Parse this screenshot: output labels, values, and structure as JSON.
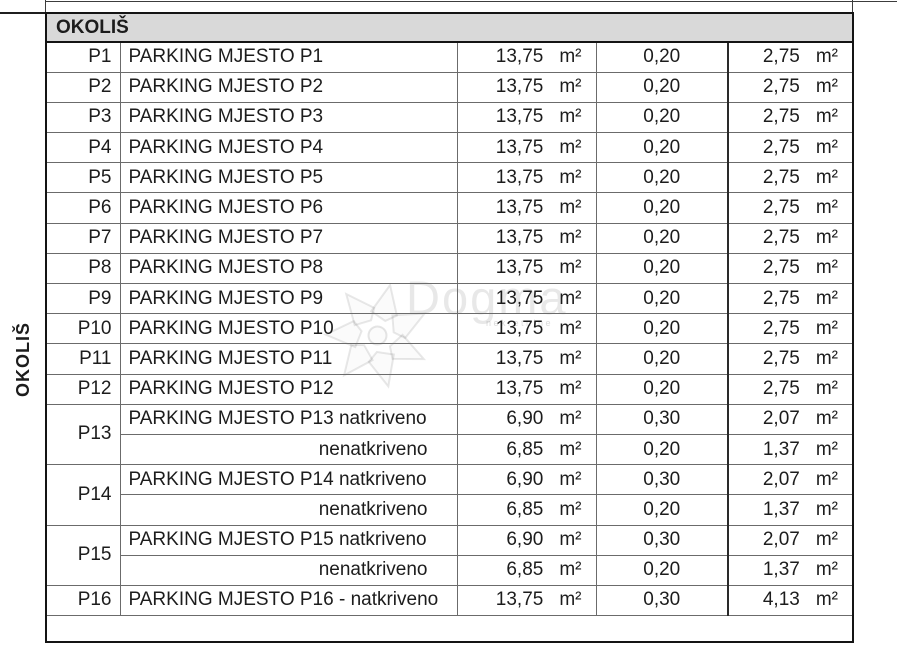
{
  "document": {
    "section_header": "OKOLIŠ",
    "side_label": "OKOLIŠ",
    "unit": "m²"
  },
  "watermark": {
    "brand": "Dogma",
    "subtitle": "nekretnine"
  },
  "table": {
    "rows": [
      {
        "code": "P1",
        "label": "PARKING MJESTO P1",
        "area": "13,75",
        "coef": "0,20",
        "result": "2,75"
      },
      {
        "code": "P2",
        "label": "PARKING MJESTO P2",
        "area": "13,75",
        "coef": "0,20",
        "result": "2,75"
      },
      {
        "code": "P3",
        "label": "PARKING MJESTO P3",
        "area": "13,75",
        "coef": "0,20",
        "result": "2,75"
      },
      {
        "code": "P4",
        "label": "PARKING MJESTO P4",
        "area": "13,75",
        "coef": "0,20",
        "result": "2,75"
      },
      {
        "code": "P5",
        "label": "PARKING MJESTO P5",
        "area": "13,75",
        "coef": "0,20",
        "result": "2,75"
      },
      {
        "code": "P6",
        "label": "PARKING MJESTO P6",
        "area": "13,75",
        "coef": "0,20",
        "result": "2,75"
      },
      {
        "code": "P7",
        "label": "PARKING MJESTO P7",
        "area": "13,75",
        "coef": "0,20",
        "result": "2,75"
      },
      {
        "code": "P8",
        "label": "PARKING MJESTO P8",
        "area": "13,75",
        "coef": "0,20",
        "result": "2,75"
      },
      {
        "code": "P9",
        "label": "PARKING MJESTO P9",
        "area": "13,75",
        "coef": "0,20",
        "result": "2,75"
      },
      {
        "code": "P10",
        "label": "PARKING MJESTO P10",
        "area": "13,75",
        "coef": "0,20",
        "result": "2,75"
      },
      {
        "code": "P11",
        "label": "PARKING MJESTO P11",
        "area": "13,75",
        "coef": "0,20",
        "result": "2,75"
      },
      {
        "code": "P12",
        "label": "PARKING MJESTO P12",
        "area": "13,75",
        "coef": "0,20",
        "result": "2,75"
      },
      {
        "code": "P13",
        "rowspan": 2,
        "label": "PARKING MJESTO P13 natkriveno",
        "area": "6,90",
        "coef": "0,30",
        "result": "2,07"
      },
      {
        "sub": true,
        "label": "nenatkriveno",
        "area": "6,85",
        "coef": "0,20",
        "result": "1,37"
      },
      {
        "code": "P14",
        "rowspan": 2,
        "label": "PARKING MJESTO P14 natkriveno",
        "area": "6,90",
        "coef": "0,30",
        "result": "2,07"
      },
      {
        "sub": true,
        "label": "nenatkriveno",
        "area": "6,85",
        "coef": "0,20",
        "result": "1,37"
      },
      {
        "code": "P15",
        "rowspan": 2,
        "label": "PARKING MJESTO P15 natkriveno",
        "area": "6,90",
        "coef": "0,30",
        "result": "2,07"
      },
      {
        "sub": true,
        "label": "nenatkriveno",
        "area": "6,85",
        "coef": "0,20",
        "result": "1,37"
      },
      {
        "code": "P16",
        "label": "PARKING MJESTO P16 - natkriveno",
        "area": "13,75",
        "coef": "0,30",
        "result": "4,13"
      }
    ]
  }
}
